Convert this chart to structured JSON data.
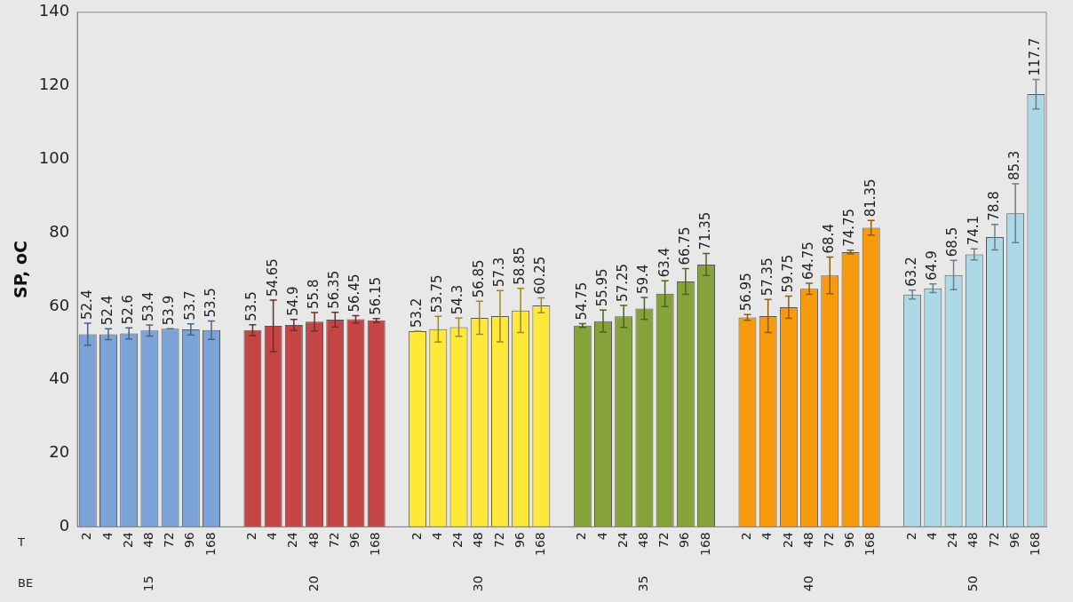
{
  "chart_data": {
    "type": "bar",
    "ylabel": "SP, oC",
    "ylim": [
      0,
      140
    ],
    "yticks": [
      0,
      20,
      40,
      60,
      80,
      100,
      120,
      140
    ],
    "grid": false,
    "legend": false,
    "data_labels": true,
    "categories": [
      "2",
      "4",
      "24",
      "48",
      "72",
      "96",
      "168",
      null,
      "2",
      "4",
      "24",
      "48",
      "72",
      "96",
      "168",
      null,
      "2",
      "4",
      "24",
      "48",
      "72",
      "96",
      "168",
      null,
      "2",
      "4",
      "24",
      "48",
      "72",
      "96",
      "168",
      null,
      "2",
      "4",
      "24",
      "48",
      "72",
      "96",
      "168",
      null,
      "2",
      "4",
      "24",
      "48",
      "72",
      "96",
      "168"
    ],
    "series": [
      {
        "color": "#7ba3d8",
        "values": [
          52.4,
          52.4,
          52.6,
          53.4,
          53.9,
          53.7,
          53.5,
          null,
          null,
          null,
          null,
          null,
          null,
          null,
          null,
          null,
          null,
          null,
          null,
          null,
          null,
          null,
          null,
          null,
          null,
          null,
          null,
          null,
          null,
          null,
          null,
          null,
          null,
          null,
          null,
          null,
          null,
          null,
          null,
          null,
          null,
          null,
          null,
          null,
          null,
          null,
          null
        ],
        "errors": [
          3,
          1.5,
          1.5,
          1.5,
          0,
          1.5,
          2.5,
          null,
          null,
          null,
          null,
          null,
          null,
          null,
          null,
          null,
          null,
          null,
          null,
          null,
          null,
          null,
          null,
          null,
          null,
          null,
          null,
          null,
          null,
          null,
          null,
          null,
          null,
          null,
          null,
          null,
          null,
          null,
          null,
          null,
          null,
          null,
          null,
          null,
          null,
          null,
          null
        ]
      },
      {
        "color": "#c44545",
        "values": [
          null,
          null,
          null,
          null,
          null,
          null,
          null,
          null,
          53.5,
          54.65,
          54.9,
          55.8,
          56.35,
          56.45,
          56.15,
          null,
          null,
          null,
          null,
          null,
          null,
          null,
          null,
          null,
          null,
          null,
          null,
          null,
          null,
          null,
          null,
          null,
          null,
          null,
          null,
          null,
          null,
          null,
          null,
          null,
          null,
          null,
          null,
          null,
          null,
          null,
          null
        ],
        "errors": [
          null,
          null,
          null,
          null,
          null,
          null,
          null,
          null,
          1.5,
          7,
          1.5,
          2.5,
          2,
          1,
          0.5,
          null,
          null,
          null,
          null,
          null,
          null,
          null,
          null,
          null,
          null,
          null,
          null,
          null,
          null,
          null,
          null,
          null,
          null,
          null,
          null,
          null,
          null,
          null,
          null,
          null,
          null,
          null,
          null,
          null,
          null,
          null,
          null
        ]
      },
      {
        "color": "#ffe83a",
        "values": [
          null,
          null,
          null,
          null,
          null,
          null,
          null,
          null,
          null,
          null,
          null,
          null,
          null,
          null,
          null,
          null,
          53.2,
          53.75,
          54.3,
          56.85,
          57.3,
          58.85,
          60.25,
          null,
          null,
          null,
          null,
          null,
          null,
          null,
          null,
          null,
          null,
          null,
          null,
          null,
          null,
          null,
          null,
          null,
          null,
          null,
          null,
          null,
          null,
          null,
          null
        ],
        "errors": [
          null,
          null,
          null,
          null,
          null,
          null,
          null,
          null,
          null,
          null,
          null,
          null,
          null,
          null,
          null,
          null,
          0,
          3.5,
          2.5,
          4.5,
          7,
          6,
          2,
          null,
          null,
          null,
          null,
          null,
          null,
          null,
          null,
          null,
          null,
          null,
          null,
          null,
          null,
          null,
          null,
          null,
          null,
          null,
          null,
          null,
          null,
          null,
          null
        ]
      },
      {
        "color": "#86a33a",
        "values": [
          null,
          null,
          null,
          null,
          null,
          null,
          null,
          null,
          null,
          null,
          null,
          null,
          null,
          null,
          null,
          null,
          null,
          null,
          null,
          null,
          null,
          null,
          null,
          null,
          54.75,
          55.95,
          57.25,
          59.4,
          63.4,
          66.75,
          71.35,
          null,
          null,
          null,
          null,
          null,
          null,
          null,
          null,
          null,
          null,
          null,
          null,
          null,
          null,
          null,
          null
        ],
        "errors": [
          null,
          null,
          null,
          null,
          null,
          null,
          null,
          null,
          null,
          null,
          null,
          null,
          null,
          null,
          null,
          null,
          null,
          null,
          null,
          null,
          null,
          null,
          null,
          null,
          0.5,
          3,
          3,
          3,
          3.5,
          3.5,
          3,
          null,
          null,
          null,
          null,
          null,
          null,
          null,
          null,
          null,
          null,
          null,
          null,
          null,
          null,
          null,
          null
        ]
      },
      {
        "color": "#f79a0b",
        "values": [
          null,
          null,
          null,
          null,
          null,
          null,
          null,
          null,
          null,
          null,
          null,
          null,
          null,
          null,
          null,
          null,
          null,
          null,
          null,
          null,
          null,
          null,
          null,
          null,
          null,
          null,
          null,
          null,
          null,
          null,
          null,
          null,
          56.95,
          57.35,
          59.75,
          64.75,
          68.4,
          74.75,
          81.35,
          null,
          null,
          null,
          null,
          null,
          null,
          null,
          null
        ],
        "errors": [
          null,
          null,
          null,
          null,
          null,
          null,
          null,
          null,
          null,
          null,
          null,
          null,
          null,
          null,
          null,
          null,
          null,
          null,
          null,
          null,
          null,
          null,
          null,
          null,
          null,
          null,
          null,
          null,
          null,
          null,
          null,
          null,
          0.8,
          4.5,
          3,
          1.5,
          5,
          0.5,
          2,
          null,
          null,
          null,
          null,
          null,
          null,
          null,
          null
        ]
      },
      {
        "color": "#add8e6",
        "values": [
          null,
          null,
          null,
          null,
          null,
          null,
          null,
          null,
          null,
          null,
          null,
          null,
          null,
          null,
          null,
          null,
          null,
          null,
          null,
          null,
          null,
          null,
          null,
          null,
          null,
          null,
          null,
          null,
          null,
          null,
          null,
          null,
          null,
          null,
          null,
          null,
          null,
          null,
          null,
          null,
          63.2,
          64.9,
          68.5,
          74.1,
          78.8,
          85.3,
          117.7
        ],
        "errors": [
          null,
          null,
          null,
          null,
          null,
          null,
          null,
          null,
          null,
          null,
          null,
          null,
          null,
          null,
          null,
          null,
          null,
          null,
          null,
          null,
          null,
          null,
          null,
          null,
          null,
          null,
          null,
          null,
          null,
          null,
          null,
          null,
          null,
          null,
          null,
          null,
          null,
          null,
          null,
          null,
          1.2,
          1.2,
          4,
          1.5,
          3.5,
          8,
          4
        ]
      }
    ],
    "annotations": [
      "T",
      "BE",
      "15",
      "20",
      "30",
      "35",
      "40",
      "50"
    ]
  }
}
